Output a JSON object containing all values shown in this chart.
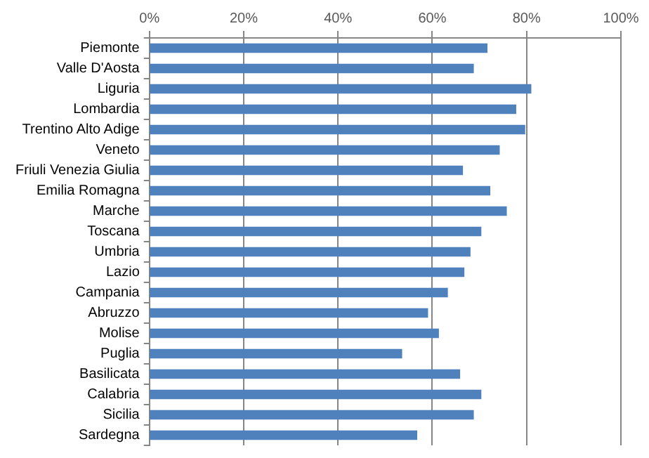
{
  "chart_data": {
    "type": "bar",
    "orientation": "horizontal",
    "categories": [
      "Piemonte",
      "Valle D'Aosta",
      "Liguria",
      "Lombardia",
      "Trentino Alto Adige",
      "Veneto",
      "Friuli Venezia Giulia",
      "Emilia Romagna",
      "Marche",
      "Toscana",
      "Umbria",
      "Lazio",
      "Campania",
      "Abruzzo",
      "Molise",
      "Puglia",
      "Basilicata",
      "Calabria",
      "Sicilia",
      "Sardegna"
    ],
    "values": [
      0.716,
      0.687,
      0.809,
      0.777,
      0.796,
      0.742,
      0.664,
      0.722,
      0.757,
      0.703,
      0.68,
      0.667,
      0.632,
      0.59,
      0.613,
      0.535,
      0.658,
      0.703,
      0.687,
      0.567
    ],
    "color": "#4f81bd",
    "xlim": [
      0,
      1
    ],
    "xticks": [
      {
        "value": 0,
        "label": "0%"
      },
      {
        "value": 0.2,
        "label": "20%"
      },
      {
        "value": 0.4,
        "label": "40%"
      },
      {
        "value": 0.6,
        "label": "60%"
      },
      {
        "value": 0.8,
        "label": "80%"
      },
      {
        "value": 1,
        "label": "100%"
      }
    ],
    "grid": "x",
    "legend": false
  }
}
